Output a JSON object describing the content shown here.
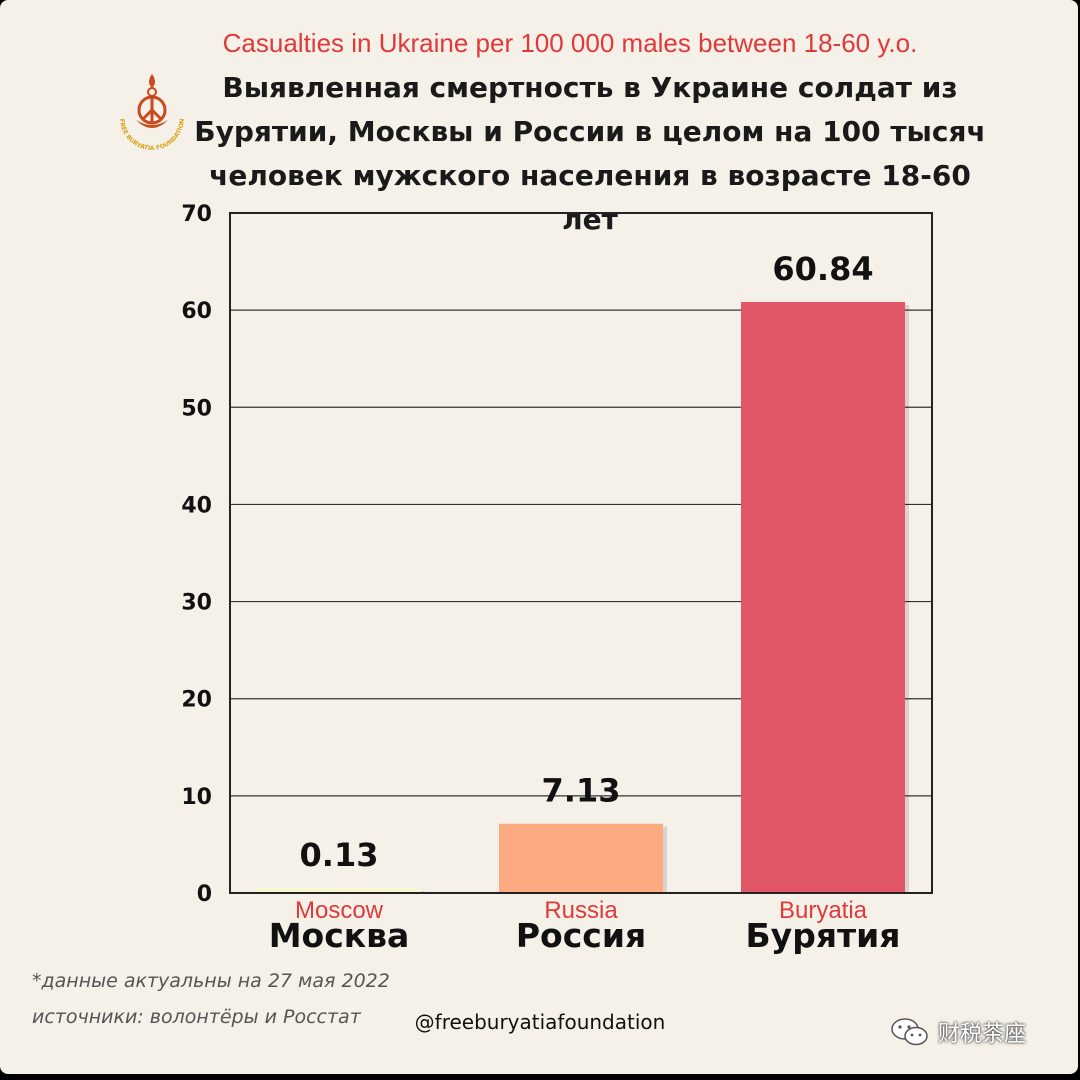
{
  "header": {
    "title_en": "Casualties in Ukraine per 100 000 males between 18-60 y.o.",
    "title_ru_lines": [
      "Выявленная смертность в Украине солдат из",
      "Бурятии, Москвы и России в целом на 100 тысяч",
      "человек мужского населения в возрасте 18-60 лет"
    ]
  },
  "logo": {
    "icon": "free-buryatia-foundation-logo",
    "text": "FREE BURYATIA FOUNDATION",
    "color": "#c84a1e"
  },
  "chart_data": {
    "type": "bar",
    "categories": [
      "Москва",
      "Россия",
      "Бурятия"
    ],
    "categories_en": [
      "Moscow",
      "Russia",
      "Buryatia"
    ],
    "values": [
      0.13,
      7.13,
      60.84
    ],
    "value_labels": [
      "0.13",
      "7.13",
      "60.84"
    ],
    "colors": [
      "#fbf6d2",
      "#fcaa80",
      "#e05667"
    ],
    "ylim": [
      0,
      70
    ],
    "yticks": [
      0,
      10,
      20,
      30,
      40,
      50,
      60,
      70
    ],
    "grid": true,
    "title": "",
    "xlabel": "",
    "ylabel": ""
  },
  "footer": {
    "note_date": "*данные актуальны на 27 мая 2022",
    "note_sources": "источники: волонтёры и Росстат",
    "handle": "@freeburyatiafoundation",
    "watermark": "财税茶座",
    "watermark_icon": "wechat-icon"
  }
}
